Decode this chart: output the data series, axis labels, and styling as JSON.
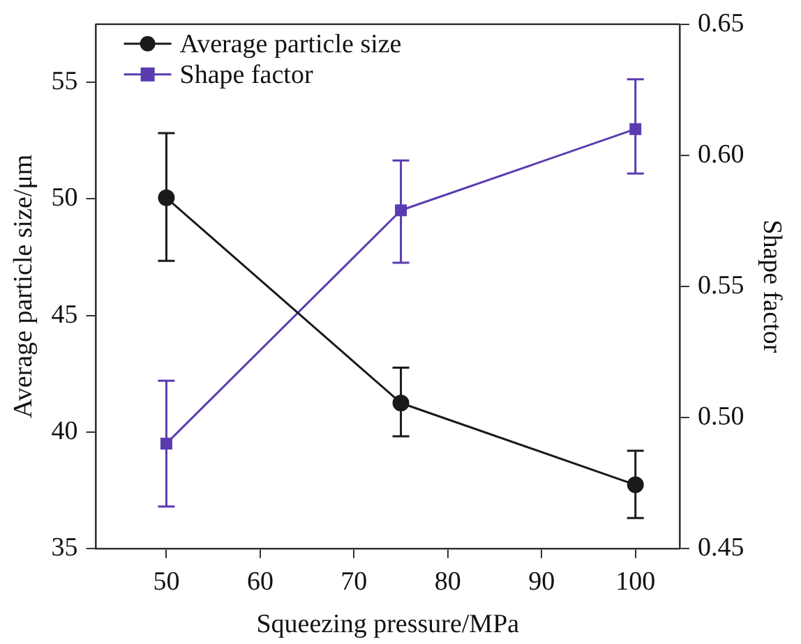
{
  "chart_data": {
    "type": "line",
    "xlabel": "Squeezing pressure/MPa",
    "ylabel": "Average particle size/μm",
    "y2label": "Shape factor",
    "x": [
      50,
      75,
      100
    ],
    "xlim": [
      42.5,
      104.7
    ],
    "xticks": [
      50,
      60,
      70,
      80,
      90,
      100
    ],
    "ylim": [
      35,
      57.5
    ],
    "yticks": [
      35,
      40,
      45,
      50,
      55
    ],
    "y2lim": [
      0.45,
      0.65
    ],
    "y2ticks": [
      {
        "value": 0.45,
        "label": "0.45"
      },
      {
        "value": 0.5,
        "label": "0.50"
      },
      {
        "value": 0.55,
        "label": "0.55"
      },
      {
        "value": 0.6,
        "label": "0.60"
      },
      {
        "value": 0.65,
        "label": "0.65"
      }
    ],
    "grid": false,
    "legend": "top left",
    "line_style": "solid",
    "series": [
      {
        "name": "Average particle size",
        "color": "#1a1a1a",
        "marker": "circle",
        "values": [
          50.05,
          41.24,
          37.73
        ],
        "errors": [
          [
            47.34,
            52.83
          ],
          [
            39.81,
            42.76
          ],
          [
            36.3,
            39.19
          ]
        ]
      },
      {
        "name": "Shape factor",
        "color": "#5b3bb0",
        "marker": "square",
        "axis": "y2",
        "values": [
          0.49,
          0.579,
          0.61
        ],
        "errors": [
          [
            0.466,
            0.514
          ],
          [
            0.559,
            0.598
          ],
          [
            0.593,
            0.629
          ]
        ]
      }
    ]
  }
}
